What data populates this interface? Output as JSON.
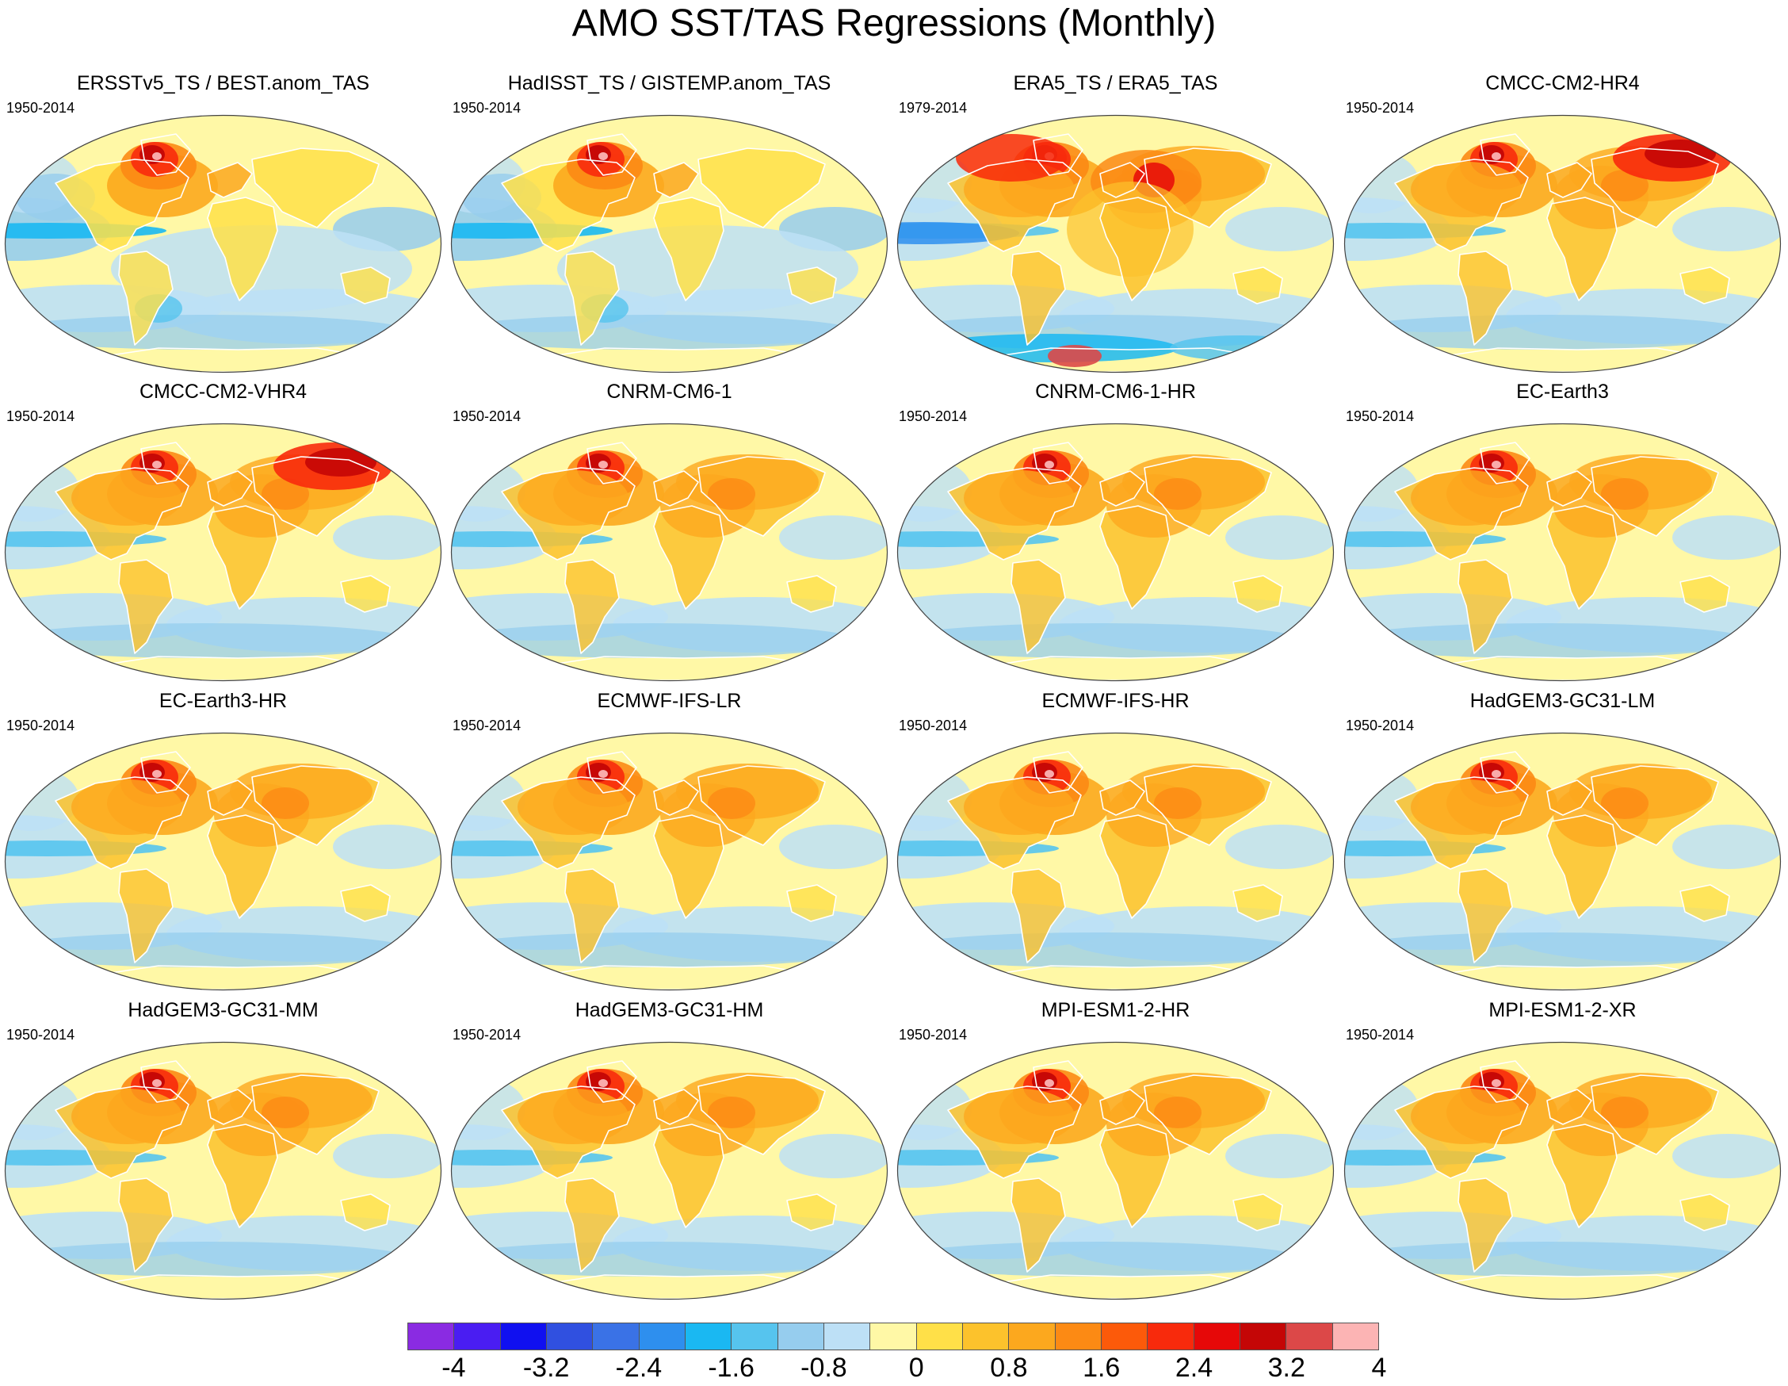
{
  "title": "AMO SST/TAS Regressions (Monthly)",
  "panels": [
    {
      "title": "ERSSTv5_TS / BEST.anom_TAS",
      "period": "1950-2014",
      "pattern": "observed"
    },
    {
      "title": "HadISST_TS / GISTEMP.anom_TAS",
      "period": "1950-2014",
      "pattern": "observed"
    },
    {
      "title": "ERA5_TS / ERA5_TAS",
      "period": "1979-2014",
      "pattern": "reanalysis"
    },
    {
      "title": "CMCC-CM2-HR4",
      "period": "1950-2014",
      "pattern": "model-warm-siberia"
    },
    {
      "title": "CMCC-CM2-VHR4",
      "period": "1950-2014",
      "pattern": "model-warm-siberia"
    },
    {
      "title": "CNRM-CM6-1",
      "period": "1950-2014",
      "pattern": "model"
    },
    {
      "title": "CNRM-CM6-1-HR",
      "period": "1950-2014",
      "pattern": "model"
    },
    {
      "title": "EC-Earth3",
      "period": "1950-2014",
      "pattern": "model"
    },
    {
      "title": "EC-Earth3-HR",
      "period": "1950-2014",
      "pattern": "model"
    },
    {
      "title": "ECMWF-IFS-LR",
      "period": "1950-2014",
      "pattern": "model"
    },
    {
      "title": "ECMWF-IFS-HR",
      "period": "1950-2014",
      "pattern": "model"
    },
    {
      "title": "HadGEM3-GC31-LM",
      "period": "1950-2014",
      "pattern": "model"
    },
    {
      "title": "HadGEM3-GC31-MM",
      "period": "1950-2014",
      "pattern": "model"
    },
    {
      "title": "HadGEM3-GC31-HM",
      "period": "1950-2014",
      "pattern": "model"
    },
    {
      "title": "MPI-ESM1-2-HR",
      "period": "1950-2014",
      "pattern": "model"
    },
    {
      "title": "MPI-ESM1-2-XR",
      "period": "1950-2014",
      "pattern": "model"
    }
  ],
  "colorbar": {
    "colors": [
      "#8a2be2",
      "#4a1df2",
      "#1010f0",
      "#3050e0",
      "#3a72e6",
      "#2e8fee",
      "#1ab8f2",
      "#56c4ee",
      "#96cdee",
      "#bde0f6",
      "#fff8a6",
      "#ffe048",
      "#fcc22c",
      "#fca81e",
      "#fc8a14",
      "#fc5a0a",
      "#f82a0c",
      "#e60808",
      "#c40606",
      "#dc4848",
      "#fcb4b4"
    ],
    "labels": [
      "-4",
      "-3.2",
      "-2.4",
      "-1.6",
      "-0.8",
      "0",
      "0.8",
      "1.6",
      "2.4",
      "3.2",
      "4"
    ]
  }
}
